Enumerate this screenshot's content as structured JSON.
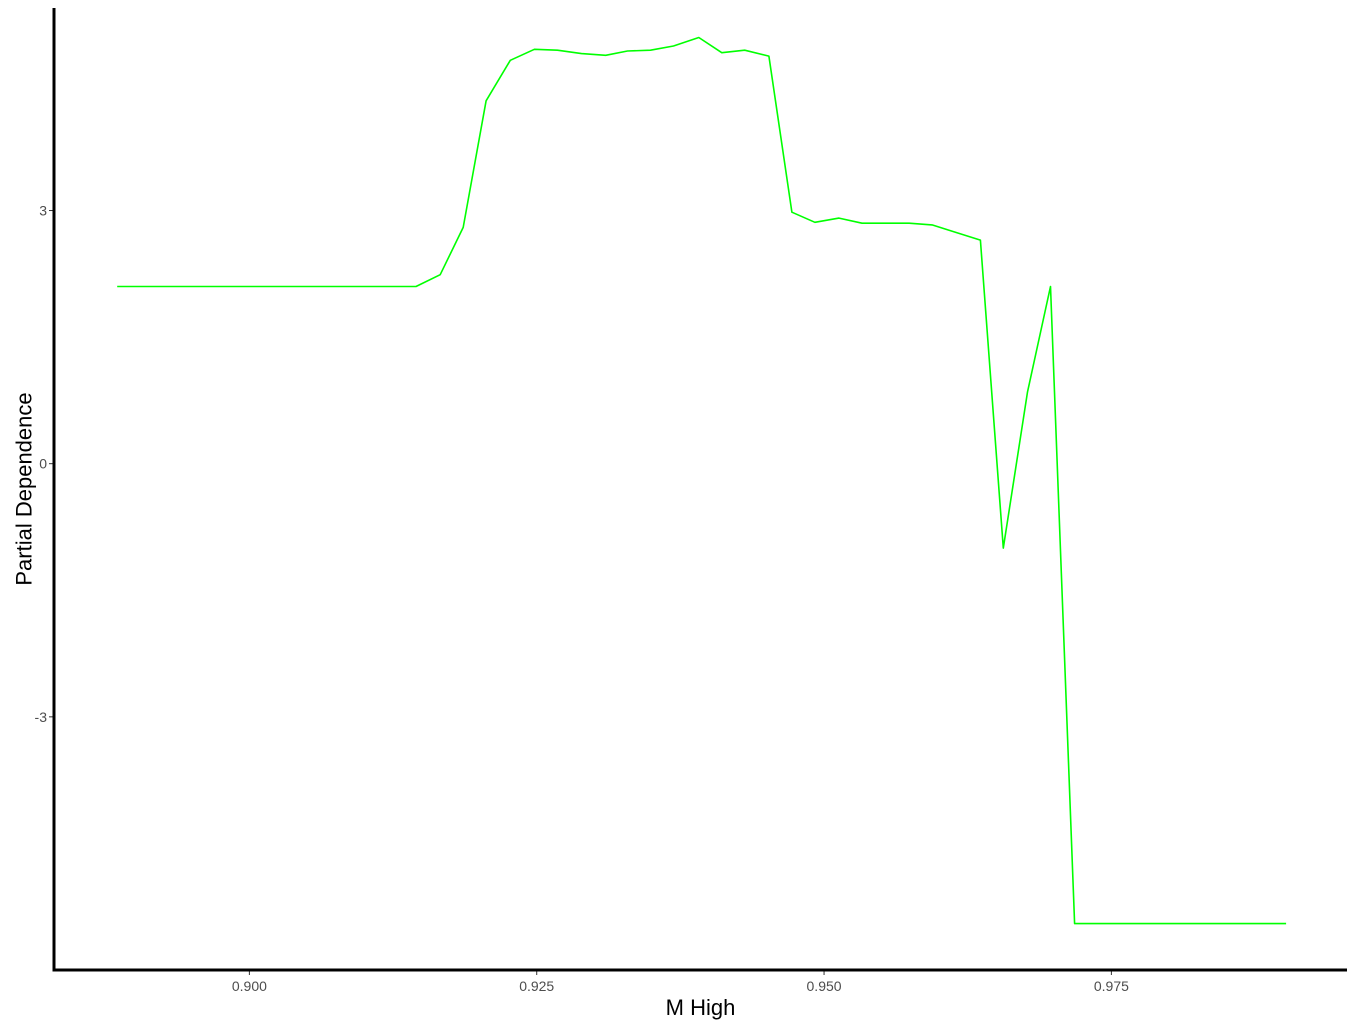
{
  "chart_data": {
    "type": "line",
    "title": "",
    "xlabel": "M High",
    "ylabel": "Partial Dependence",
    "xlim": [
      0.883,
      0.9955
    ],
    "ylim": [
      -6.0,
      5.4
    ],
    "grid": false,
    "legend": "none",
    "x_ticks": [
      {
        "value": 0.9,
        "label": "0.900"
      },
      {
        "value": 0.925,
        "label": "0.925"
      },
      {
        "value": 0.95,
        "label": "0.950"
      },
      {
        "value": 0.975,
        "label": "0.975"
      }
    ],
    "y_ticks": [
      {
        "value": -3,
        "label": "-3"
      },
      {
        "value": 0,
        "label": "0"
      },
      {
        "value": 3,
        "label": "3"
      }
    ],
    "series": [
      {
        "name": "partial dependence",
        "color": "#00ff00",
        "x": [
          0.8885,
          0.8905,
          0.8925,
          0.8945,
          0.8965,
          0.8985,
          0.9005,
          0.9025,
          0.9045,
          0.9065,
          0.9085,
          0.9105,
          0.9125,
          0.9145,
          0.9166,
          0.9186,
          0.9206,
          0.9227,
          0.9248,
          0.9268,
          0.9289,
          0.931,
          0.9329,
          0.9349,
          0.9369,
          0.9391,
          0.9411,
          0.9431,
          0.9452,
          0.9472,
          0.9492,
          0.9513,
          0.9533,
          0.9553,
          0.9574,
          0.9594,
          0.9615,
          0.9636,
          0.9656,
          0.9677,
          0.9697,
          0.9718,
          0.9738,
          0.9758,
          0.9779,
          0.9799,
          0.9819,
          0.984,
          0.986,
          0.988,
          0.9902
        ],
        "y": [
          2.1,
          2.1,
          2.1,
          2.1,
          2.1,
          2.1,
          2.1,
          2.1,
          2.1,
          2.1,
          2.1,
          2.1,
          2.1,
          2.1,
          2.24,
          2.8,
          4.3,
          4.78,
          4.91,
          4.9,
          4.86,
          4.84,
          4.89,
          4.9,
          4.95,
          5.05,
          4.87,
          4.9,
          4.83,
          2.98,
          2.86,
          2.91,
          2.85,
          2.85,
          2.85,
          2.83,
          2.74,
          2.65,
          -1.0,
          0.85,
          2.1,
          -5.45,
          -5.45,
          -5.45,
          -5.45,
          -5.45,
          -5.45,
          -5.45,
          -5.45,
          -5.45,
          -5.45
        ]
      }
    ]
  }
}
